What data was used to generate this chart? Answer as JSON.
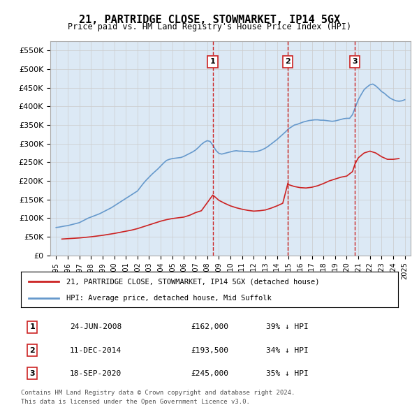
{
  "title": "21, PARTRIDGE CLOSE, STOWMARKET, IP14 5GX",
  "subtitle": "Price paid vs. HM Land Registry's House Price Index (HPI)",
  "legend_label_red": "21, PARTRIDGE CLOSE, STOWMARKET, IP14 5GX (detached house)",
  "legend_label_blue": "HPI: Average price, detached house, Mid Suffolk",
  "footer1": "Contains HM Land Registry data © Crown copyright and database right 2024.",
  "footer2": "This data is licensed under the Open Government Licence v3.0.",
  "ylim": [
    0,
    575000
  ],
  "yticks": [
    0,
    50000,
    100000,
    150000,
    200000,
    250000,
    300000,
    350000,
    400000,
    450000,
    500000,
    550000
  ],
  "ytick_labels": [
    "£0",
    "£50K",
    "£100K",
    "£150K",
    "£200K",
    "£250K",
    "£300K",
    "£350K",
    "£400K",
    "£450K",
    "£500K",
    "£550K"
  ],
  "sales": [
    {
      "label": "1",
      "date": "24-JUN-2008",
      "price": 162000,
      "year": 2008.48,
      "hpi_diff": "39% ↓ HPI"
    },
    {
      "label": "2",
      "date": "11-DEC-2014",
      "price": 193500,
      "year": 2014.94,
      "hpi_diff": "34% ↓ HPI"
    },
    {
      "label": "3",
      "date": "18-SEP-2020",
      "price": 245000,
      "year": 2020.71,
      "hpi_diff": "35% ↓ HPI"
    }
  ],
  "hpi_color": "#6699cc",
  "sale_color": "#cc2222",
  "marker_box_color": "#cc2222",
  "background_color": "#dce9f5",
  "plot_bg": "#ffffff",
  "grid_color": "#cccccc",
  "hpi_data_years": [
    1995,
    1995.25,
    1995.5,
    1995.75,
    1996,
    1996.25,
    1996.5,
    1996.75,
    1997,
    1997.25,
    1997.5,
    1997.75,
    1998,
    1998.25,
    1998.5,
    1998.75,
    1999,
    1999.25,
    1999.5,
    1999.75,
    2000,
    2000.25,
    2000.5,
    2000.75,
    2001,
    2001.25,
    2001.5,
    2001.75,
    2002,
    2002.25,
    2002.5,
    2002.75,
    2003,
    2003.25,
    2003.5,
    2003.75,
    2004,
    2004.25,
    2004.5,
    2004.75,
    2005,
    2005.25,
    2005.5,
    2005.75,
    2006,
    2006.25,
    2006.5,
    2006.75,
    2007,
    2007.25,
    2007.5,
    2007.75,
    2008,
    2008.25,
    2008.5,
    2008.75,
    2009,
    2009.25,
    2009.5,
    2009.75,
    2010,
    2010.25,
    2010.5,
    2010.75,
    2011,
    2011.25,
    2011.5,
    2011.75,
    2012,
    2012.25,
    2012.5,
    2012.75,
    2013,
    2013.25,
    2013.5,
    2013.75,
    2014,
    2014.25,
    2014.5,
    2014.75,
    2015,
    2015.25,
    2015.5,
    2015.75,
    2016,
    2016.25,
    2016.5,
    2016.75,
    2017,
    2017.25,
    2017.5,
    2017.75,
    2018,
    2018.25,
    2018.5,
    2018.75,
    2019,
    2019.25,
    2019.5,
    2019.75,
    2020,
    2020.25,
    2020.5,
    2020.75,
    2021,
    2021.25,
    2021.5,
    2021.75,
    2022,
    2022.25,
    2022.5,
    2022.75,
    2023,
    2023.25,
    2023.5,
    2023.75,
    2024,
    2024.25,
    2024.5,
    2024.75,
    2025
  ],
  "hpi_data_values": [
    75000,
    76000,
    77500,
    79000,
    80000,
    82000,
    84000,
    86000,
    88000,
    92000,
    96000,
    100000,
    103000,
    106000,
    109000,
    112000,
    116000,
    120000,
    124000,
    128000,
    133000,
    138000,
    143000,
    148000,
    153000,
    158000,
    163000,
    168000,
    173000,
    183000,
    193000,
    202000,
    210000,
    218000,
    225000,
    232000,
    240000,
    248000,
    255000,
    258000,
    260000,
    261000,
    262000,
    263000,
    266000,
    270000,
    274000,
    278000,
    283000,
    290000,
    298000,
    304000,
    308000,
    306000,
    295000,
    282000,
    274000,
    272000,
    274000,
    276000,
    278000,
    280000,
    281000,
    280000,
    280000,
    279000,
    279000,
    278000,
    278000,
    279000,
    281000,
    284000,
    288000,
    293000,
    299000,
    305000,
    311000,
    318000,
    325000,
    332000,
    340000,
    345000,
    350000,
    352000,
    355000,
    358000,
    360000,
    362000,
    363000,
    364000,
    364000,
    363000,
    363000,
    362000,
    361000,
    360000,
    361000,
    363000,
    365000,
    367000,
    368000,
    368000,
    378000,
    398000,
    418000,
    432000,
    445000,
    452000,
    458000,
    460000,
    455000,
    448000,
    440000,
    435000,
    428000,
    422000,
    418000,
    415000,
    414000,
    415000,
    418000
  ],
  "sale_data_years": [
    1995.5,
    1996,
    1996.5,
    1997,
    1997.5,
    1998,
    1998.5,
    1999,
    1999.5,
    2000,
    2000.5,
    2001,
    2001.5,
    2002,
    2002.5,
    2003,
    2003.5,
    2004,
    2004.5,
    2005,
    2005.5,
    2006,
    2006.5,
    2007,
    2007.5,
    2008.48,
    2008.75,
    2009,
    2009.5,
    2010,
    2010.5,
    2011,
    2011.5,
    2012,
    2012.5,
    2013,
    2013.5,
    2014,
    2014.5,
    2014.94,
    2015,
    2015.5,
    2016,
    2016.5,
    2017,
    2017.5,
    2018,
    2018.5,
    2019,
    2019.5,
    2020,
    2020.5,
    2020.71,
    2021,
    2021.5,
    2022,
    2022.5,
    2023,
    2023.5,
    2024,
    2024.5
  ],
  "sale_data_values": [
    44000,
    45000,
    46000,
    47000,
    48500,
    50000,
    52000,
    54000,
    56500,
    59000,
    62000,
    65000,
    68000,
    72000,
    77000,
    82000,
    87000,
    92000,
    96000,
    99000,
    101000,
    103000,
    108000,
    115000,
    120000,
    162000,
    155000,
    148000,
    140000,
    133000,
    128000,
    124000,
    121000,
    119000,
    120000,
    122000,
    127000,
    133000,
    140000,
    193500,
    190000,
    185000,
    182000,
    181000,
    183000,
    187000,
    193000,
    200000,
    205000,
    210000,
    213000,
    225000,
    245000,
    262000,
    275000,
    280000,
    275000,
    265000,
    258000,
    258000,
    260000
  ]
}
